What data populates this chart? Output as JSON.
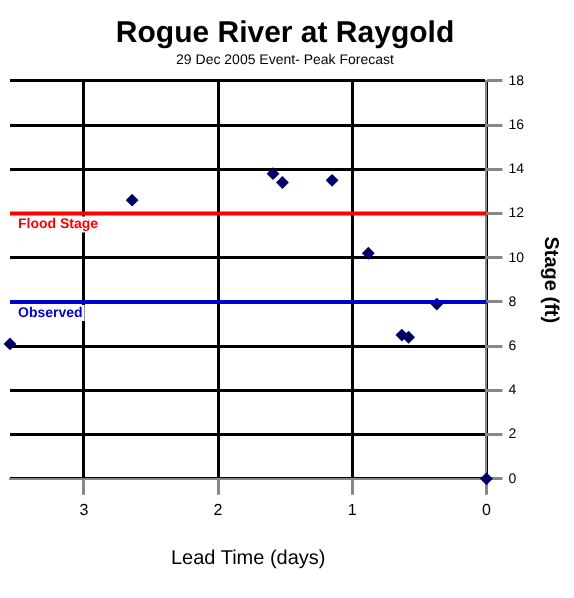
{
  "chart_data": {
    "type": "scatter",
    "title": "Rogue River at Raygold",
    "subtitle": "29 Dec 2005 Event- Peak Forecast",
    "xlabel": "Lead Time (days)",
    "ylabel": "Stage (ft)",
    "x": [
      3.55,
      2.64,
      1.59,
      1.52,
      1.15,
      0.88,
      0.63,
      0.58,
      0.37,
      0
    ],
    "series": [
      {
        "color": "#000066",
        "values": [
          6.1,
          12.6,
          13.8,
          13.4,
          13.5,
          10.2,
          6.5,
          6.4,
          7.9,
          0
        ]
      }
    ],
    "xlim": [
      3.55,
      0
    ],
    "xticks": [
      3,
      2,
      1,
      0
    ],
    "ylim": [
      0,
      18
    ],
    "yticks": [
      0,
      2,
      4,
      6,
      8,
      10,
      12,
      14,
      16,
      18
    ],
    "ref_lines": [
      {
        "axis": "y",
        "value": 12,
        "label": "Flood Stage",
        "color": "#ff0000"
      },
      {
        "axis": "y",
        "value": 8,
        "label": "Observed",
        "color": "#0000cc"
      }
    ],
    "grid": true,
    "marker": "diamond",
    "legend": false
  }
}
